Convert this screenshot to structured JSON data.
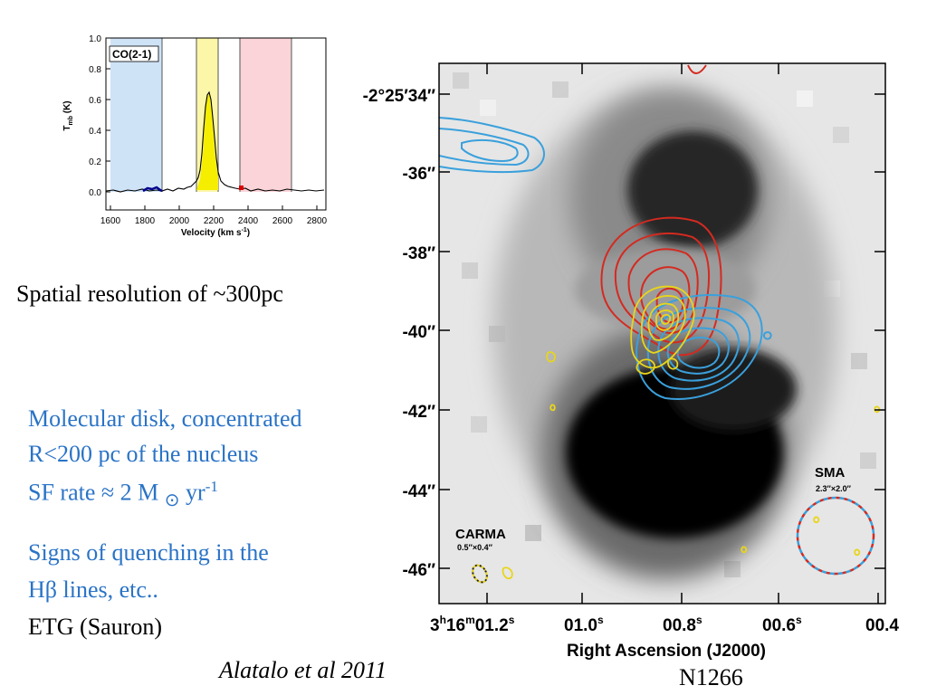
{
  "slide": {
    "resolution_text": "Spatial resolution of ~300pc",
    "points": {
      "disk_line1": "Molecular disk, concentrated",
      "disk_line2": "R<200 pc of the nucleus",
      "sf_prefix": "SF rate ≈ 2 M",
      "sf_sun_symbol": "⊙",
      "sf_unit": " yr",
      "sf_exponent": "-1",
      "quench_line1": "Signs of quenching in the",
      "quench_line2": "Hβ lines, etc..",
      "etg": "ETG (Sauron)"
    },
    "citation": "Alatalo et al 2011",
    "galaxy_name": "N1266"
  },
  "spectrum": {
    "panel_label": "CO(2-1)",
    "ylabel_main": "T",
    "ylabel_sub": "mb",
    "ylabel_unit": " (K)",
    "xlabel_main": "Velocity (km s",
    "xlabel_exp": "-1",
    "xlabel_close": ")",
    "y_ticks": [
      "0.0",
      "0.2",
      "0.4",
      "0.6",
      "0.8",
      "1.0"
    ],
    "x_ticks": [
      "1600",
      "1800",
      "2000",
      "2200",
      "2400",
      "2600",
      "2800"
    ],
    "colors": {
      "blue_band": "#cfe3f7",
      "yellow_band": "#fbf6a8",
      "red_band": "#fad4d8",
      "line": "#000000"
    }
  },
  "map": {
    "dec_ticks": [
      "-2°25′34″",
      "-36″",
      "-38″",
      "-40″",
      "-42″",
      "-44″",
      "-46″"
    ],
    "ra_ticks": [
      "3h16m01.2s",
      "01.0s",
      "00.8s",
      "00.6s",
      "00.4"
    ],
    "ra_tick_parts": {
      "first": {
        "h": "3",
        "hs": "h",
        "m": "16",
        "ms": "m",
        "s": "01.2",
        "ss": "s"
      },
      "second": {
        "v": "01.0",
        "s": "s"
      },
      "third": {
        "v": "00.8",
        "s": "s"
      },
      "fourth": {
        "v": "00.6",
        "s": "s"
      },
      "fifth": {
        "v": "00.4"
      }
    },
    "xlabel": "Right Ascension (J2000)",
    "carma_label": "CARMA",
    "carma_beam": "0.5″×0.4″",
    "sma_label": "SMA",
    "sma_beam": "2.3″×2.0″",
    "contour_colors": {
      "red": "#d42a20",
      "blue": "#3aa0dc",
      "yellow": "#e8d51a"
    }
  }
}
